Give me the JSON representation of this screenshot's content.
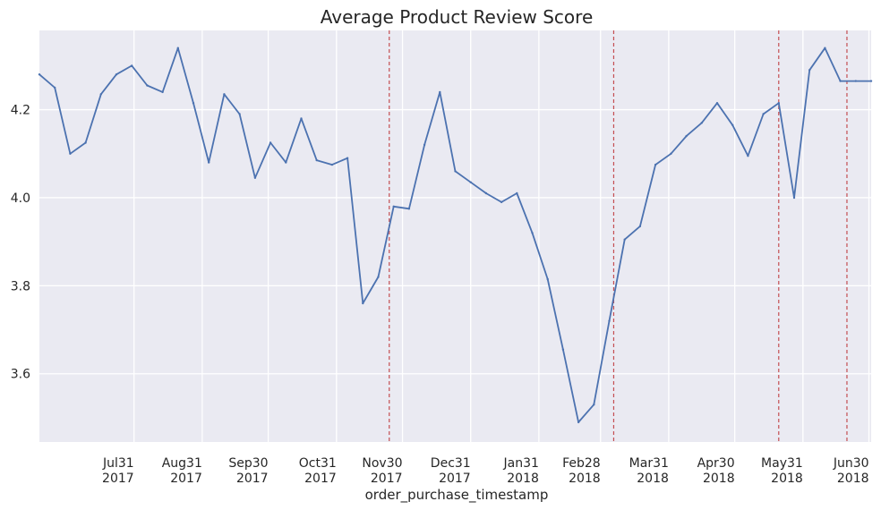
{
  "chart_data": {
    "type": "line",
    "title": "Average Product Review Score",
    "xlabel": "order_purchase_timestamp",
    "ylabel": "",
    "xlim": [
      "2017-06-18",
      "2018-07-01"
    ],
    "ylim": [
      3.445,
      4.38
    ],
    "grid": true,
    "yticks": [
      3.6,
      3.8,
      4.0,
      4.2
    ],
    "ytick_labels": [
      "3.6",
      "3.8",
      "4.0",
      "4.2"
    ],
    "xticks": [
      {
        "date": "2017-07-31",
        "line1": "Jul31",
        "line2": "2017"
      },
      {
        "date": "2017-08-31",
        "line1": "Aug31",
        "line2": "2017"
      },
      {
        "date": "2017-09-30",
        "line1": "Sep30",
        "line2": "2017"
      },
      {
        "date": "2017-10-31",
        "line1": "Oct31",
        "line2": "2017"
      },
      {
        "date": "2017-11-30",
        "line1": "Nov30",
        "line2": "2017"
      },
      {
        "date": "2017-12-31",
        "line1": "Dec31",
        "line2": "2017"
      },
      {
        "date": "2018-01-31",
        "line1": "Jan31",
        "line2": "2018"
      },
      {
        "date": "2018-02-28",
        "line1": "Feb28",
        "line2": "2018"
      },
      {
        "date": "2018-03-31",
        "line1": "Mar31",
        "line2": "2018"
      },
      {
        "date": "2018-04-30",
        "line1": "Apr30",
        "line2": "2018"
      },
      {
        "date": "2018-05-31",
        "line1": "May31",
        "line2": "2018"
      },
      {
        "date": "2018-06-30",
        "line1": "Jun30",
        "line2": "2018"
      }
    ],
    "vlines": [
      "2017-11-24",
      "2018-03-06",
      "2018-05-20",
      "2018-06-20"
    ],
    "series": [
      {
        "color": "#4c72b0",
        "x": [
          "2017-06-18",
          "2017-06-25",
          "2017-07-02",
          "2017-07-09",
          "2017-07-16",
          "2017-07-23",
          "2017-07-30",
          "2017-08-06",
          "2017-08-13",
          "2017-08-20",
          "2017-08-27",
          "2017-09-03",
          "2017-09-10",
          "2017-09-17",
          "2017-09-24",
          "2017-10-01",
          "2017-10-08",
          "2017-10-15",
          "2017-10-22",
          "2017-10-29",
          "2017-11-05",
          "2017-11-12",
          "2017-11-19",
          "2017-11-26",
          "2017-12-03",
          "2017-12-10",
          "2017-12-17",
          "2017-12-24",
          "2017-12-31",
          "2018-01-07",
          "2018-01-14",
          "2018-01-21",
          "2018-01-28",
          "2018-02-04",
          "2018-02-11",
          "2018-02-18",
          "2018-02-25",
          "2018-03-04",
          "2018-03-11",
          "2018-03-18",
          "2018-03-25",
          "2018-04-01",
          "2018-04-08",
          "2018-04-15",
          "2018-04-22",
          "2018-04-29",
          "2018-05-06",
          "2018-05-13",
          "2018-05-20",
          "2018-05-27",
          "2018-06-03",
          "2018-06-10",
          "2018-06-17",
          "2018-06-24",
          "2018-07-01"
        ],
        "values": [
          4.28,
          4.25,
          4.1,
          4.125,
          4.235,
          4.28,
          4.3,
          4.255,
          4.24,
          4.34,
          4.215,
          4.08,
          4.235,
          4.19,
          4.045,
          4.125,
          4.08,
          4.18,
          4.085,
          4.075,
          4.09,
          3.76,
          3.82,
          3.98,
          3.975,
          4.12,
          4.24,
          4.06,
          4.035,
          4.01,
          3.99,
          4.01,
          3.92,
          3.815,
          3.655,
          3.49,
          3.53,
          3.72,
          3.905,
          3.935,
          4.075,
          4.1,
          4.14,
          4.17,
          4.215,
          4.165,
          4.095,
          4.19,
          4.215,
          4.0,
          4.29,
          4.34,
          4.265,
          4.265,
          4.265
        ]
      }
    ]
  }
}
